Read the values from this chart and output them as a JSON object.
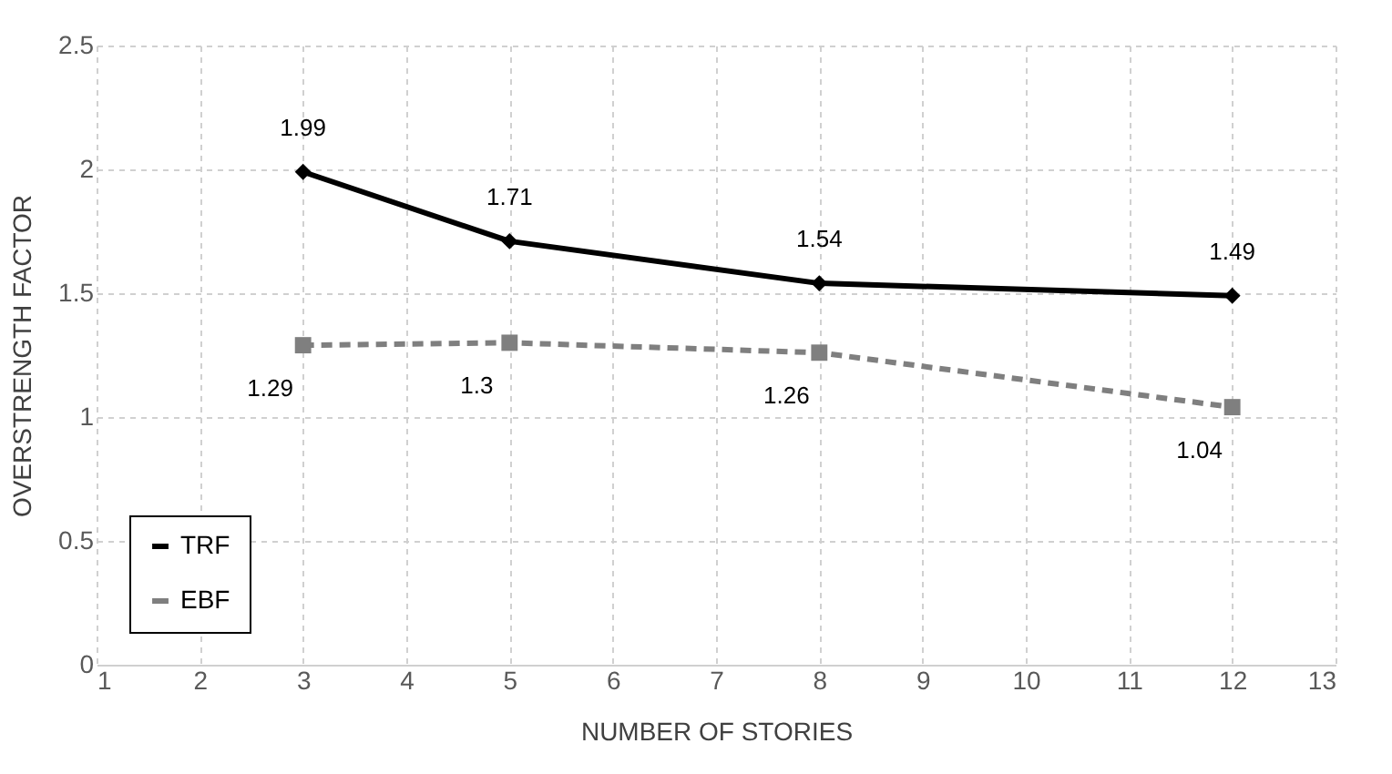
{
  "chart_data": {
    "type": "line",
    "xlabel": "NUMBER OF STORIES",
    "ylabel": "OVERSTRENGTH FACTOR",
    "x": [
      3,
      5,
      8,
      12
    ],
    "series": [
      {
        "name": "TRF",
        "color": "#000000",
        "values": [
          1.99,
          1.71,
          1.54,
          1.49
        ],
        "marker": "diamond",
        "line_style": "solid"
      },
      {
        "name": "EBF",
        "color": "#7f7f7f",
        "values": [
          1.29,
          1.3,
          1.26,
          1.04
        ],
        "marker": "square",
        "line_style": "dashed"
      }
    ],
    "xlim": [
      1,
      13
    ],
    "xticks": [
      1,
      2,
      3,
      4,
      5,
      6,
      7,
      8,
      9,
      10,
      11,
      12,
      13
    ],
    "ylim": [
      0,
      2.5
    ],
    "yticks": [
      0,
      0.5,
      1,
      1.5,
      2,
      2.5
    ],
    "grid": true,
    "legend": "bottom left",
    "data_labels": true
  }
}
